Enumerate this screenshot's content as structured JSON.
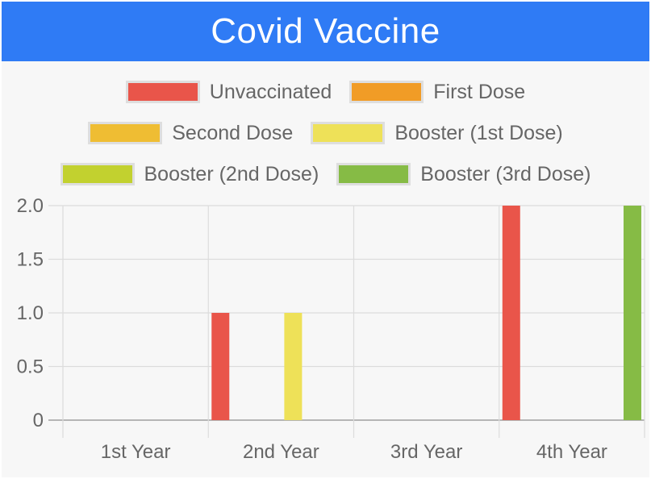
{
  "header": {
    "title": "Covid Vaccine"
  },
  "chart_data": {
    "type": "bar",
    "categories": [
      "1st Year",
      "2nd Year",
      "3rd Year",
      "4th Year"
    ],
    "series": [
      {
        "name": "Unvaccinated",
        "color": "#e9554a",
        "values": [
          0,
          1,
          0,
          2
        ]
      },
      {
        "name": "First Dose",
        "color": "#f19c26",
        "values": [
          0,
          0,
          0,
          0
        ]
      },
      {
        "name": "Second Dose",
        "color": "#efbd33",
        "values": [
          0,
          0,
          0,
          0
        ]
      },
      {
        "name": "Booster (1st Dose)",
        "color": "#eee158",
        "values": [
          0,
          1,
          0,
          0
        ]
      },
      {
        "name": "Booster (2nd Dose)",
        "color": "#c2d12f",
        "values": [
          0,
          0,
          0,
          0
        ]
      },
      {
        "name": "Booster (3rd Dose)",
        "color": "#86bb45",
        "values": [
          0,
          0,
          0,
          2
        ]
      }
    ],
    "ylim": [
      0,
      2
    ],
    "yticks": [
      "0",
      "0.5",
      "1.0",
      "1.5",
      "2.0"
    ],
    "legend_position": "top",
    "grid": true
  }
}
